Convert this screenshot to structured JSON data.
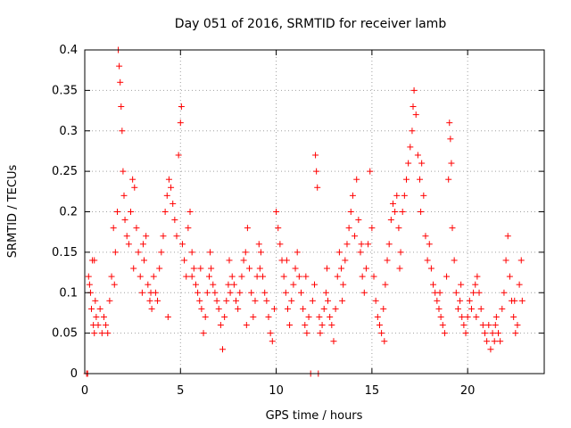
{
  "chart_data": {
    "type": "scatter",
    "title": "Day 051 of 2016, SRMTID for receiver lamb",
    "xlabel": "GPS time / hours",
    "ylabel": "SRMTID / TECUs",
    "xlim": [
      0,
      24
    ],
    "ylim": [
      0,
      0.4
    ],
    "x_ticks": [
      0,
      5,
      10,
      15,
      20
    ],
    "x_tick_labels": [
      "0",
      "5",
      "10",
      "15",
      "20"
    ],
    "y_ticks": [
      0,
      0.05,
      0.1,
      0.15,
      0.2,
      0.25,
      0.3,
      0.35,
      0.4
    ],
    "y_tick_labels": [
      "0",
      "0.05",
      "0.1",
      "0.15",
      "0.2",
      "0.25",
      "0.3",
      "0.35",
      "0.4"
    ],
    "grid": true,
    "marker": "+",
    "marker_color": "#ff0000",
    "series": [
      {
        "name": "SRMTID",
        "points": [
          [
            0.1,
            0.0
          ],
          [
            0.15,
            0.0
          ],
          [
            0.2,
            0.12
          ],
          [
            0.3,
            0.1
          ],
          [
            0.35,
            0.08
          ],
          [
            0.4,
            0.14
          ],
          [
            0.45,
            0.06
          ],
          [
            0.5,
            0.05
          ],
          [
            0.55,
            0.09
          ],
          [
            0.6,
            0.07
          ],
          [
            0.7,
            0.06
          ],
          [
            0.8,
            0.08
          ],
          [
            0.9,
            0.05
          ],
          [
            1.0,
            0.07
          ],
          [
            1.1,
            0.06
          ],
          [
            1.2,
            0.05
          ],
          [
            1.3,
            0.09
          ],
          [
            1.4,
            0.12
          ],
          [
            1.5,
            0.18
          ],
          [
            1.6,
            0.15
          ],
          [
            1.7,
            0.2
          ],
          [
            1.75,
            0.4
          ],
          [
            1.8,
            0.38
          ],
          [
            1.85,
            0.36
          ],
          [
            1.9,
            0.33
          ],
          [
            1.95,
            0.3
          ],
          [
            2.0,
            0.25
          ],
          [
            2.05,
            0.22
          ],
          [
            2.1,
            0.19
          ],
          [
            2.2,
            0.17
          ],
          [
            2.3,
            0.16
          ],
          [
            2.4,
            0.2
          ],
          [
            2.5,
            0.24
          ],
          [
            2.6,
            0.23
          ],
          [
            2.7,
            0.18
          ],
          [
            2.8,
            0.15
          ],
          [
            2.9,
            0.12
          ],
          [
            3.0,
            0.1
          ],
          [
            3.1,
            0.14
          ],
          [
            3.2,
            0.17
          ],
          [
            3.3,
            0.11
          ],
          [
            3.4,
            0.09
          ],
          [
            3.5,
            0.08
          ],
          [
            3.6,
            0.12
          ],
          [
            3.7,
            0.1
          ],
          [
            3.8,
            0.09
          ],
          [
            3.9,
            0.13
          ],
          [
            4.0,
            0.15
          ],
          [
            4.1,
            0.17
          ],
          [
            4.2,
            0.2
          ],
          [
            4.3,
            0.22
          ],
          [
            4.4,
            0.24
          ],
          [
            4.5,
            0.23
          ],
          [
            4.6,
            0.21
          ],
          [
            4.7,
            0.19
          ],
          [
            4.8,
            0.17
          ],
          [
            4.9,
            0.27
          ],
          [
            5.0,
            0.31
          ],
          [
            5.05,
            0.33
          ],
          [
            5.1,
            0.16
          ],
          [
            5.2,
            0.14
          ],
          [
            5.3,
            0.12
          ],
          [
            5.4,
            0.18
          ],
          [
            5.5,
            0.2
          ],
          [
            5.6,
            0.15
          ],
          [
            5.7,
            0.13
          ],
          [
            5.8,
            0.11
          ],
          [
            5.9,
            0.1
          ],
          [
            6.0,
            0.09
          ],
          [
            6.1,
            0.08
          ],
          [
            6.2,
            0.05
          ],
          [
            6.3,
            0.07
          ],
          [
            6.4,
            0.1
          ],
          [
            6.5,
            0.12
          ],
          [
            6.6,
            0.13
          ],
          [
            6.7,
            0.11
          ],
          [
            6.8,
            0.1
          ],
          [
            6.9,
            0.09
          ],
          [
            7.0,
            0.08
          ],
          [
            7.1,
            0.06
          ],
          [
            7.2,
            0.03
          ],
          [
            7.3,
            0.07
          ],
          [
            7.4,
            0.09
          ],
          [
            7.5,
            0.11
          ],
          [
            7.6,
            0.1
          ],
          [
            7.7,
            0.12
          ],
          [
            7.8,
            0.11
          ],
          [
            7.9,
            0.09
          ],
          [
            8.0,
            0.08
          ],
          [
            8.1,
            0.1
          ],
          [
            8.2,
            0.12
          ],
          [
            8.3,
            0.14
          ],
          [
            8.4,
            0.15
          ],
          [
            8.5,
            0.18
          ],
          [
            8.6,
            0.13
          ],
          [
            8.7,
            0.1
          ],
          [
            8.8,
            0.07
          ],
          [
            8.9,
            0.09
          ],
          [
            9.0,
            0.12
          ],
          [
            9.1,
            0.16
          ],
          [
            9.2,
            0.15
          ],
          [
            9.3,
            0.12
          ],
          [
            9.4,
            0.1
          ],
          [
            9.5,
            0.09
          ],
          [
            9.6,
            0.07
          ],
          [
            9.7,
            0.05
          ],
          [
            9.8,
            0.04
          ],
          [
            9.9,
            0.08
          ],
          [
            10.0,
            0.2
          ],
          [
            10.1,
            0.18
          ],
          [
            10.2,
            0.16
          ],
          [
            10.3,
            0.14
          ],
          [
            10.4,
            0.12
          ],
          [
            10.5,
            0.1
          ],
          [
            10.6,
            0.08
          ],
          [
            10.7,
            0.06
          ],
          [
            10.8,
            0.09
          ],
          [
            10.9,
            0.11
          ],
          [
            11.0,
            0.13
          ],
          [
            11.1,
            0.15
          ],
          [
            11.2,
            0.12
          ],
          [
            11.3,
            0.1
          ],
          [
            11.4,
            0.08
          ],
          [
            11.5,
            0.06
          ],
          [
            11.6,
            0.05
          ],
          [
            11.7,
            0.07
          ],
          [
            11.8,
            0.0
          ],
          [
            11.9,
            0.09
          ],
          [
            12.0,
            0.11
          ],
          [
            12.05,
            0.27
          ],
          [
            12.1,
            0.25
          ],
          [
            12.15,
            0.23
          ],
          [
            12.2,
            0.0
          ],
          [
            12.25,
            0.07
          ],
          [
            12.3,
            0.05
          ],
          [
            12.4,
            0.06
          ],
          [
            12.5,
            0.08
          ],
          [
            12.6,
            0.1
          ],
          [
            12.7,
            0.09
          ],
          [
            12.8,
            0.07
          ],
          [
            12.9,
            0.06
          ],
          [
            13.0,
            0.04
          ],
          [
            13.1,
            0.08
          ],
          [
            13.2,
            0.12
          ],
          [
            13.3,
            0.15
          ],
          [
            13.4,
            0.13
          ],
          [
            13.5,
            0.11
          ],
          [
            13.6,
            0.14
          ],
          [
            13.7,
            0.16
          ],
          [
            13.8,
            0.18
          ],
          [
            13.9,
            0.2
          ],
          [
            14.0,
            0.22
          ],
          [
            14.1,
            0.17
          ],
          [
            14.2,
            0.24
          ],
          [
            14.3,
            0.19
          ],
          [
            14.4,
            0.15
          ],
          [
            14.5,
            0.12
          ],
          [
            14.6,
            0.1
          ],
          [
            14.7,
            0.13
          ],
          [
            14.8,
            0.16
          ],
          [
            14.9,
            0.25
          ],
          [
            15.0,
            0.18
          ],
          [
            15.1,
            0.12
          ],
          [
            15.2,
            0.09
          ],
          [
            15.3,
            0.07
          ],
          [
            15.4,
            0.06
          ],
          [
            15.5,
            0.05
          ],
          [
            15.6,
            0.08
          ],
          [
            15.7,
            0.11
          ],
          [
            15.8,
            0.14
          ],
          [
            15.9,
            0.16
          ],
          [
            16.0,
            0.19
          ],
          [
            16.1,
            0.21
          ],
          [
            16.2,
            0.2
          ],
          [
            16.3,
            0.22
          ],
          [
            16.4,
            0.18
          ],
          [
            16.5,
            0.15
          ],
          [
            16.6,
            0.2
          ],
          [
            16.7,
            0.22
          ],
          [
            16.8,
            0.24
          ],
          [
            16.9,
            0.26
          ],
          [
            17.0,
            0.28
          ],
          [
            17.1,
            0.3
          ],
          [
            17.15,
            0.33
          ],
          [
            17.2,
            0.35
          ],
          [
            17.3,
            0.32
          ],
          [
            17.4,
            0.27
          ],
          [
            17.5,
            0.24
          ],
          [
            17.6,
            0.26
          ],
          [
            17.7,
            0.22
          ],
          [
            17.8,
            0.17
          ],
          [
            17.9,
            0.14
          ],
          [
            18.0,
            0.16
          ],
          [
            18.1,
            0.13
          ],
          [
            18.2,
            0.11
          ],
          [
            18.3,
            0.1
          ],
          [
            18.4,
            0.09
          ],
          [
            18.5,
            0.08
          ],
          [
            18.6,
            0.07
          ],
          [
            18.7,
            0.06
          ],
          [
            18.8,
            0.05
          ],
          [
            18.9,
            0.12
          ],
          [
            19.0,
            0.24
          ],
          [
            19.05,
            0.31
          ],
          [
            19.1,
            0.29
          ],
          [
            19.15,
            0.26
          ],
          [
            19.2,
            0.18
          ],
          [
            19.3,
            0.14
          ],
          [
            19.4,
            0.1
          ],
          [
            19.5,
            0.08
          ],
          [
            19.6,
            0.09
          ],
          [
            19.7,
            0.07
          ],
          [
            19.8,
            0.06
          ],
          [
            19.9,
            0.05
          ],
          [
            20.0,
            0.07
          ],
          [
            20.1,
            0.09
          ],
          [
            20.2,
            0.08
          ],
          [
            20.3,
            0.1
          ],
          [
            20.4,
            0.11
          ],
          [
            20.5,
            0.12
          ],
          [
            20.6,
            0.1
          ],
          [
            20.7,
            0.08
          ],
          [
            20.8,
            0.06
          ],
          [
            20.9,
            0.05
          ],
          [
            21.0,
            0.04
          ],
          [
            21.1,
            0.06
          ],
          [
            21.2,
            0.03
          ],
          [
            21.3,
            0.05
          ],
          [
            21.4,
            0.04
          ],
          [
            21.5,
            0.07
          ],
          [
            21.6,
            0.05
          ],
          [
            21.7,
            0.04
          ],
          [
            21.8,
            0.08
          ],
          [
            21.9,
            0.1
          ],
          [
            22.0,
            0.14
          ],
          [
            22.1,
            0.17
          ],
          [
            22.2,
            0.12
          ],
          [
            22.3,
            0.09
          ],
          [
            22.4,
            0.07
          ],
          [
            22.5,
            0.05
          ],
          [
            22.6,
            0.06
          ],
          [
            22.7,
            0.11
          ],
          [
            22.8,
            0.14
          ],
          [
            22.85,
            0.09
          ],
          [
            0.25,
            0.11
          ],
          [
            0.5,
            0.14
          ],
          [
            1.55,
            0.11
          ],
          [
            2.55,
            0.13
          ],
          [
            3.45,
            0.1
          ],
          [
            5.6,
            0.12
          ],
          [
            6.55,
            0.15
          ],
          [
            7.55,
            0.14
          ],
          [
            9.15,
            0.13
          ],
          [
            10.55,
            0.14
          ],
          [
            11.55,
            0.12
          ],
          [
            13.45,
            0.09
          ],
          [
            14.45,
            0.16
          ],
          [
            16.45,
            0.13
          ],
          [
            17.55,
            0.2
          ],
          [
            18.55,
            0.1
          ],
          [
            20.45,
            0.07
          ],
          [
            21.45,
            0.06
          ],
          [
            22.45,
            0.09
          ],
          [
            4.35,
            0.07
          ],
          [
            8.45,
            0.06
          ],
          [
            12.65,
            0.13
          ],
          [
            15.65,
            0.04
          ],
          [
            19.65,
            0.11
          ],
          [
            3.05,
            0.16
          ],
          [
            6.05,
            0.13
          ]
        ]
      }
    ]
  }
}
